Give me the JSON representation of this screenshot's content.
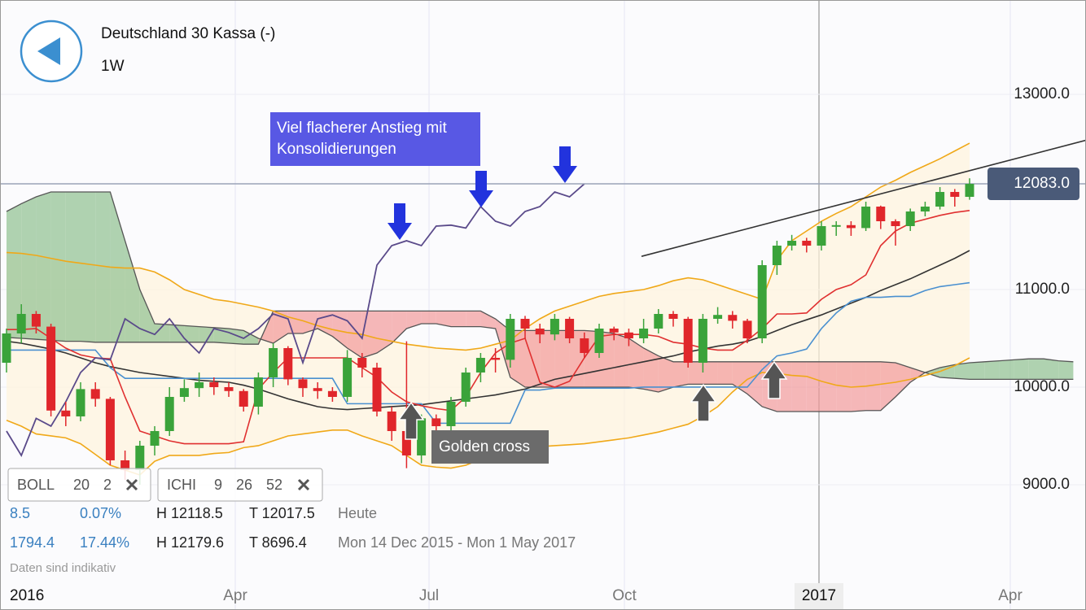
{
  "header": {
    "title": "Deutschland 30 Kassa (-)",
    "interval": "1W"
  },
  "chart_data": {
    "type": "candlestick",
    "open": [
      10250,
      10550,
      10750,
      10620,
      9760,
      9700,
      9980,
      9880,
      9250,
      9150,
      9400,
      9550,
      9900,
      9990,
      10050,
      10000,
      9960,
      9800,
      10100,
      10400,
      10080,
      9990,
      9960,
      9900,
      10300,
      10200,
      9750,
      9550,
      9300,
      9680,
      9600,
      9850,
      10150,
      10300,
      10280,
      10700,
      10600,
      10540,
      10700,
      10500,
      10350,
      10600,
      10560,
      10500,
      10600,
      10750,
      10700,
      10250,
      10700,
      10740,
      10680,
      10500,
      11250,
      11450,
      11500,
      11450,
      11650,
      11660,
      11630,
      11850,
      11700,
      11650,
      11800,
      11850,
      12000,
      11950
    ],
    "high": [
      10600,
      10850,
      10780,
      10650,
      9850,
      10050,
      10050,
      9900,
      9350,
      9450,
      9600,
      10000,
      10080,
      10150,
      10100,
      10050,
      9980,
      10150,
      10450,
      10420,
      10100,
      10050,
      10000,
      10380,
      10350,
      10250,
      9800,
      10470,
      9720,
      9720,
      9900,
      10200,
      10350,
      10400,
      10750,
      10730,
      10650,
      10750,
      10720,
      10560,
      10650,
      10620,
      10600,
      10700,
      10800,
      10780,
      10720,
      10750,
      10820,
      10780,
      10700,
      11300,
      11500,
      11560,
      11530,
      11700,
      11700,
      11700,
      11900,
      11860,
      11720,
      11830,
      11900,
      12050,
      12030,
      12140
    ],
    "low": [
      10150,
      10450,
      10550,
      9700,
      9600,
      9650,
      9800,
      9200,
      9050,
      9000,
      9300,
      9500,
      9850,
      9900,
      9920,
      9900,
      9750,
      9720,
      10000,
      10020,
      9900,
      9880,
      9850,
      9850,
      10100,
      9700,
      9450,
      9170,
      9220,
      9550,
      9550,
      9800,
      10050,
      10150,
      10200,
      10500,
      10450,
      10480,
      10450,
      10300,
      10300,
      10480,
      10420,
      10450,
      10550,
      10620,
      10200,
      10150,
      10650,
      10600,
      10450,
      10450,
      11150,
      11400,
      11380,
      11400,
      11550,
      11550,
      11600,
      11620,
      11450,
      11600,
      11750,
      11820,
      11850,
      11920
    ],
    "close": [
      10550,
      10750,
      10620,
      9760,
      9700,
      9980,
      9880,
      9250,
      9150,
      9400,
      9550,
      9900,
      9990,
      10050,
      10000,
      9960,
      9800,
      10100,
      10400,
      10080,
      9990,
      9960,
      9900,
      10300,
      10200,
      9750,
      9550,
      9300,
      9680,
      9600,
      9850,
      10150,
      10300,
      10280,
      10700,
      10600,
      10540,
      10700,
      10500,
      10350,
      10600,
      10560,
      10500,
      10600,
      10750,
      10700,
      10250,
      10700,
      10740,
      10680,
      10500,
      11250,
      11450,
      11500,
      11450,
      11650,
      11660,
      11630,
      11850,
      11700,
      11650,
      11800,
      11850,
      12000,
      11950,
      12083
    ],
    "up_color": "#3aa33a",
    "down_color": "#e0262b",
    "ylim": [
      8008,
      13967
    ],
    "yticks": [
      {
        "value": 9000,
        "label": "9000.0"
      },
      {
        "value": 10000,
        "label": "10000.0"
      },
      {
        "value": 11000,
        "label": "11000.0"
      },
      {
        "value": 13000,
        "label": "13000.0"
      }
    ],
    "xticks": [
      "2016",
      "Apr",
      "Jul",
      "Oct",
      "2017",
      "Apr"
    ],
    "grid": true,
    "last_price": 12083,
    "last_price_label": "12083.0",
    "trendline": [
      11340,
      12530
    ],
    "indicators": [
      {
        "name": "BOLL",
        "params": [
          20,
          2
        ],
        "color": "#f0a818",
        "middle_color": "#333333",
        "upper": [
          11380,
          11370,
          11350,
          11320,
          11290,
          11270,
          11250,
          11230,
          11220,
          11220,
          11180,
          11100,
          11000,
          10950,
          10900,
          10880,
          10850,
          10820,
          10780,
          10720,
          10680,
          10630,
          10590,
          10560,
          10540,
          10500,
          10470,
          10440,
          10420,
          10400,
          10390,
          10380,
          10400,
          10440,
          10480,
          10600,
          10700,
          10780,
          10830,
          10880,
          10930,
          10960,
          10980,
          11000,
          11040,
          11090,
          11120,
          11100,
          11050,
          11000,
          10950,
          10900,
          11300,
          11500,
          11600,
          11700,
          11780,
          11850,
          11950,
          12050,
          12120,
          12200,
          12270,
          12340,
          12420,
          12500
        ],
        "middle": [
          10470,
          10450,
          10420,
          10390,
          10350,
          10300,
          10250,
          10210,
          10180,
          10150,
          10130,
          10110,
          10090,
          10070,
          10060,
          10050,
          10020,
          9980,
          9930,
          9880,
          9840,
          9800,
          9780,
          9770,
          9780,
          9790,
          9800,
          9810,
          9820,
          9840,
          9860,
          9880,
          9900,
          9920,
          9950,
          9980,
          10030,
          10080,
          10110,
          10140,
          10170,
          10200,
          10230,
          10260,
          10290,
          10320,
          10360,
          10390,
          10420,
          10440,
          10470,
          10520,
          10580,
          10640,
          10690,
          10740,
          10800,
          10860,
          10920,
          10990,
          11050,
          11110,
          11180,
          11250,
          11320,
          11400
        ],
        "lower": [
          9660,
          9600,
          9520,
          9500,
          9480,
          9420,
          9310,
          9200,
          9150,
          9100,
          9240,
          9300,
          9300,
          9300,
          9320,
          9330,
          9380,
          9400,
          9450,
          9500,
          9520,
          9540,
          9560,
          9560,
          9500,
          9450,
          9400,
          9300,
          9200,
          9180,
          9170,
          9200,
          9260,
          9320,
          9360,
          9380,
          9390,
          9400,
          9410,
          9420,
          9440,
          9460,
          9480,
          9510,
          9540,
          9580,
          9620,
          9700,
          9800,
          9950,
          10080,
          10150,
          10140,
          10120,
          10110,
          10060,
          10020,
          10000,
          10010,
          10030,
          10050,
          10080,
          10120,
          10160,
          10220,
          10300
        ]
      },
      {
        "name": "ICHI",
        "params": [
          9,
          26,
          52
        ],
        "tenkan_color": "#e03030",
        "kijun_color": "#4a90d0",
        "chikou_color": "#5a4a8a",
        "bull_color": "#8fc08f",
        "bear_color": "#f29a9a",
        "tenkan": [
          10590,
          10590,
          10600,
          10500,
          10400,
          10330,
          10300,
          10290,
          9900,
          9550,
          9500,
          9450,
          9420,
          9420,
          9420,
          9420,
          9440,
          9980,
          10150,
          10300,
          10300,
          10300,
          10300,
          10300,
          10200,
          10100,
          9950,
          9850,
          9810,
          9780,
          9760,
          9900,
          10150,
          10350,
          10450,
          10500,
          10050,
          10000,
          10060,
          10300,
          10520,
          10540,
          10540,
          10540,
          10520,
          10460,
          10440,
          10400,
          10380,
          10380,
          10480,
          10600,
          10750,
          10750,
          10760,
          10900,
          11000,
          11050,
          11150,
          11450,
          11600,
          11680,
          11720,
          11760,
          11790,
          11810
        ],
        "kijun": [
          10380,
          10380,
          10380,
          10380,
          10380,
          10380,
          10380,
          10200,
          10090,
          10090,
          10090,
          10090,
          10090,
          10090,
          10090,
          10090,
          10090,
          10090,
          10090,
          10090,
          10090,
          10090,
          10090,
          9830,
          9830,
          9830,
          9830,
          9830,
          9830,
          9630,
          9630,
          9630,
          9630,
          9630,
          9630,
          9970,
          9970,
          9990,
          9990,
          9990,
          9990,
          9990,
          9990,
          10000,
          10000,
          10000,
          10000,
          10000,
          10000,
          10000,
          10000,
          10180,
          10320,
          10350,
          10390,
          10600,
          10760,
          10880,
          10920,
          10920,
          10930,
          10930,
          10990,
          11030,
          11050,
          11070
        ],
        "span_a": [
          11800,
          11880,
          11950,
          12000,
          12000,
          12000,
          12000,
          12000,
          11500,
          11000,
          10650,
          10640,
          10630,
          10620,
          10610,
          10600,
          10580,
          10500,
          10450,
          10550,
          10550,
          10600,
          10520,
          10400,
          10300,
          10350,
          10450,
          10600,
          10650,
          10650,
          10620,
          10620,
          10620,
          10600,
          10100,
          10000,
          10000,
          10000,
          10000,
          10000,
          10000,
          10000,
          10000,
          9980,
          9950,
          10000,
          10030,
          10030,
          10030,
          10030,
          9930,
          9800,
          9750,
          9750,
          9750,
          9750,
          9750,
          9750,
          9760,
          9760,
          9900,
          10050,
          10150,
          10200,
          10230,
          10250,
          10260,
          10270,
          10280,
          10290,
          10290,
          10270,
          10260
        ],
        "span_b": [
          10510,
          10500,
          10490,
          10480,
          10470,
          10470,
          10460,
          10460,
          10460,
          10460,
          10460,
          10460,
          10460,
          10460,
          10460,
          10450,
          10440,
          10440,
          10780,
          10780,
          10780,
          10780,
          10780,
          10780,
          10780,
          10780,
          10780,
          10780,
          10780,
          10780,
          10780,
          10780,
          10780,
          10700,
          10580,
          10580,
          10580,
          10580,
          10580,
          10580,
          10570,
          10550,
          10500,
          10400,
          10320,
          10260,
          10260,
          10260,
          10260,
          10260,
          10260,
          10260,
          10260,
          10260,
          10260,
          10260,
          10260,
          10260,
          10260,
          10260,
          10250,
          10200,
          10150,
          10100,
          10090,
          10080,
          10080,
          10080,
          10080,
          10080,
          10080,
          10080,
          10080
        ]
      }
    ],
    "annotations": [
      {
        "lines": [
          "Viel flacherer Anstieg mit",
          "Konsolidierungen"
        ]
      },
      {
        "lines": [
          "Golden cross"
        ]
      }
    ]
  },
  "info": {
    "rows": [
      [
        "8.5",
        "0.07%",
        "H 12118.5",
        "T 12017.5",
        "Heute"
      ],
      [
        "1794.4",
        "17.44%",
        "H 12179.6",
        "T 8696.4",
        "Mon 14 Dec 2015 - Mon 1 May 2017"
      ]
    ],
    "note": "Daten sind indikativ"
  }
}
